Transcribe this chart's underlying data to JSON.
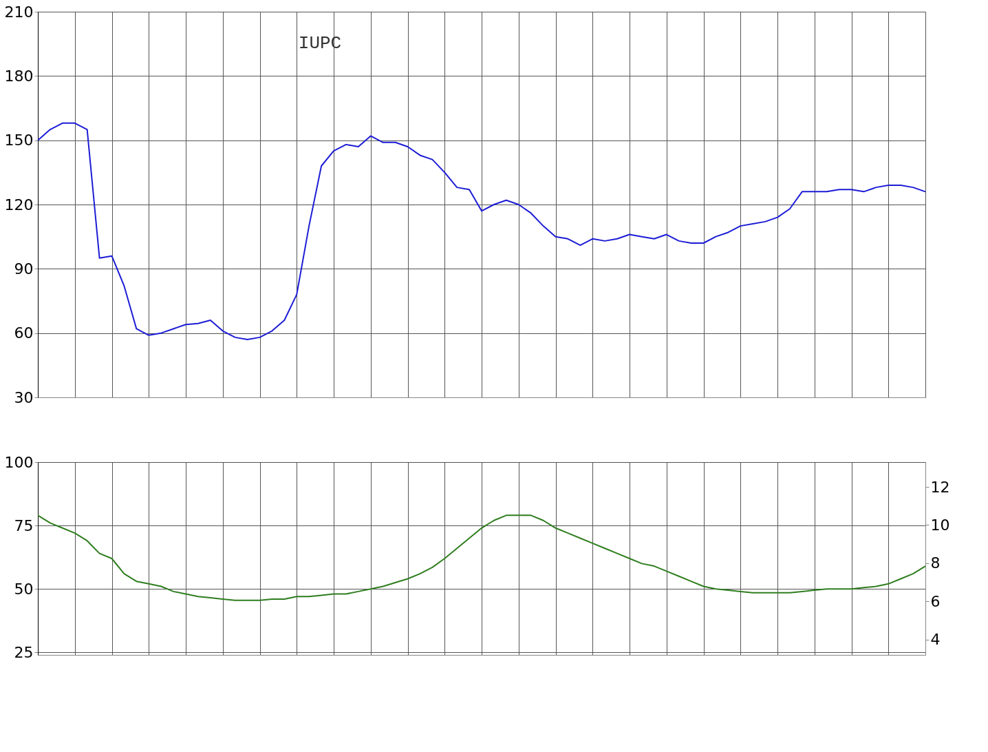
{
  "chart_data": [
    {
      "type": "line",
      "annotations": [
        "IUPC"
      ],
      "categories": [
        null,
        null,
        null,
        null,
        null,
        null,
        null,
        null,
        null,
        null,
        null,
        null,
        null,
        null,
        null,
        null,
        null,
        null,
        null,
        null,
        null,
        null,
        null,
        null,
        null,
        null,
        null,
        null,
        null,
        null,
        null,
        null,
        null,
        null,
        null,
        null,
        null,
        null,
        null,
        null,
        null,
        null,
        null,
        null,
        null,
        null,
        null,
        null,
        null,
        null,
        null,
        null,
        null,
        null,
        null,
        null,
        null,
        null,
        null,
        null,
        null,
        null,
        null,
        null,
        null,
        null,
        null,
        null,
        null,
        null,
        null,
        null,
        null
      ],
      "series": [
        {
          "color": "#1c1cd6",
          "values": [
            150,
            155,
            158,
            158,
            155,
            95,
            96,
            82,
            62,
            59,
            60,
            62,
            64,
            64.5,
            66,
            61,
            58,
            57,
            58,
            61,
            66,
            78,
            110,
            138,
            145,
            148,
            147,
            152,
            149,
            149,
            147,
            143,
            141,
            135,
            128,
            127,
            117,
            120,
            122,
            120,
            116,
            110,
            105,
            104,
            101,
            104,
            103,
            104,
            106,
            105,
            104,
            106,
            103,
            102,
            102,
            105,
            107,
            110,
            111,
            112,
            114,
            118,
            126,
            126,
            126,
            127,
            127,
            126,
            128,
            129,
            129,
            128,
            126
          ]
        }
      ],
      "ylim": [
        30,
        210
      ],
      "yticks": [
        30,
        60,
        90,
        120,
        150,
        180,
        210
      ],
      "grid": true,
      "tick_labels": "y"
    },
    {
      "type": "line",
      "categories": [
        null,
        null,
        null,
        null,
        null,
        null,
        null,
        null,
        null,
        null,
        null,
        null,
        null,
        null,
        null,
        null,
        null,
        null,
        null,
        null,
        null,
        null,
        null,
        null,
        null,
        null,
        null,
        null,
        null,
        null,
        null,
        null,
        null,
        null,
        null,
        null,
        null,
        null,
        null,
        null,
        null,
        null,
        null,
        null,
        null,
        null,
        null,
        null,
        null,
        null,
        null,
        null,
        null,
        null,
        null,
        null,
        null,
        null,
        null,
        null,
        null,
        null,
        null,
        null,
        null,
        null,
        null,
        null,
        null,
        null,
        null,
        null,
        null
      ],
      "series": [
        {
          "color": "#2e7d1e",
          "values": [
            79,
            76,
            74,
            72,
            69,
            64,
            62,
            56,
            53,
            52,
            51,
            49,
            48,
            47,
            46.5,
            46,
            45.5,
            45.5,
            45.5,
            46,
            46,
            47,
            47,
            47.5,
            48,
            48,
            49,
            50,
            51,
            52.5,
            54,
            56,
            58.5,
            62,
            66,
            70,
            74,
            77,
            79,
            79,
            79,
            77,
            74,
            72,
            70,
            68,
            66,
            64,
            62,
            60,
            59,
            57,
            55,
            53,
            51,
            50,
            49.5,
            49,
            48.5,
            48.5,
            48.5,
            48.5,
            49,
            49.5,
            50,
            50,
            50,
            50.5,
            51,
            52,
            54,
            56,
            59
          ]
        }
      ],
      "ylim": [
        24,
        100
      ],
      "yticks": [
        25,
        50,
        75,
        100
      ],
      "y2lim": [
        3.2,
        13.3
      ],
      "y2ticks": [
        4,
        6,
        8,
        10,
        12
      ],
      "grid": true,
      "tick_labels": "y"
    }
  ]
}
